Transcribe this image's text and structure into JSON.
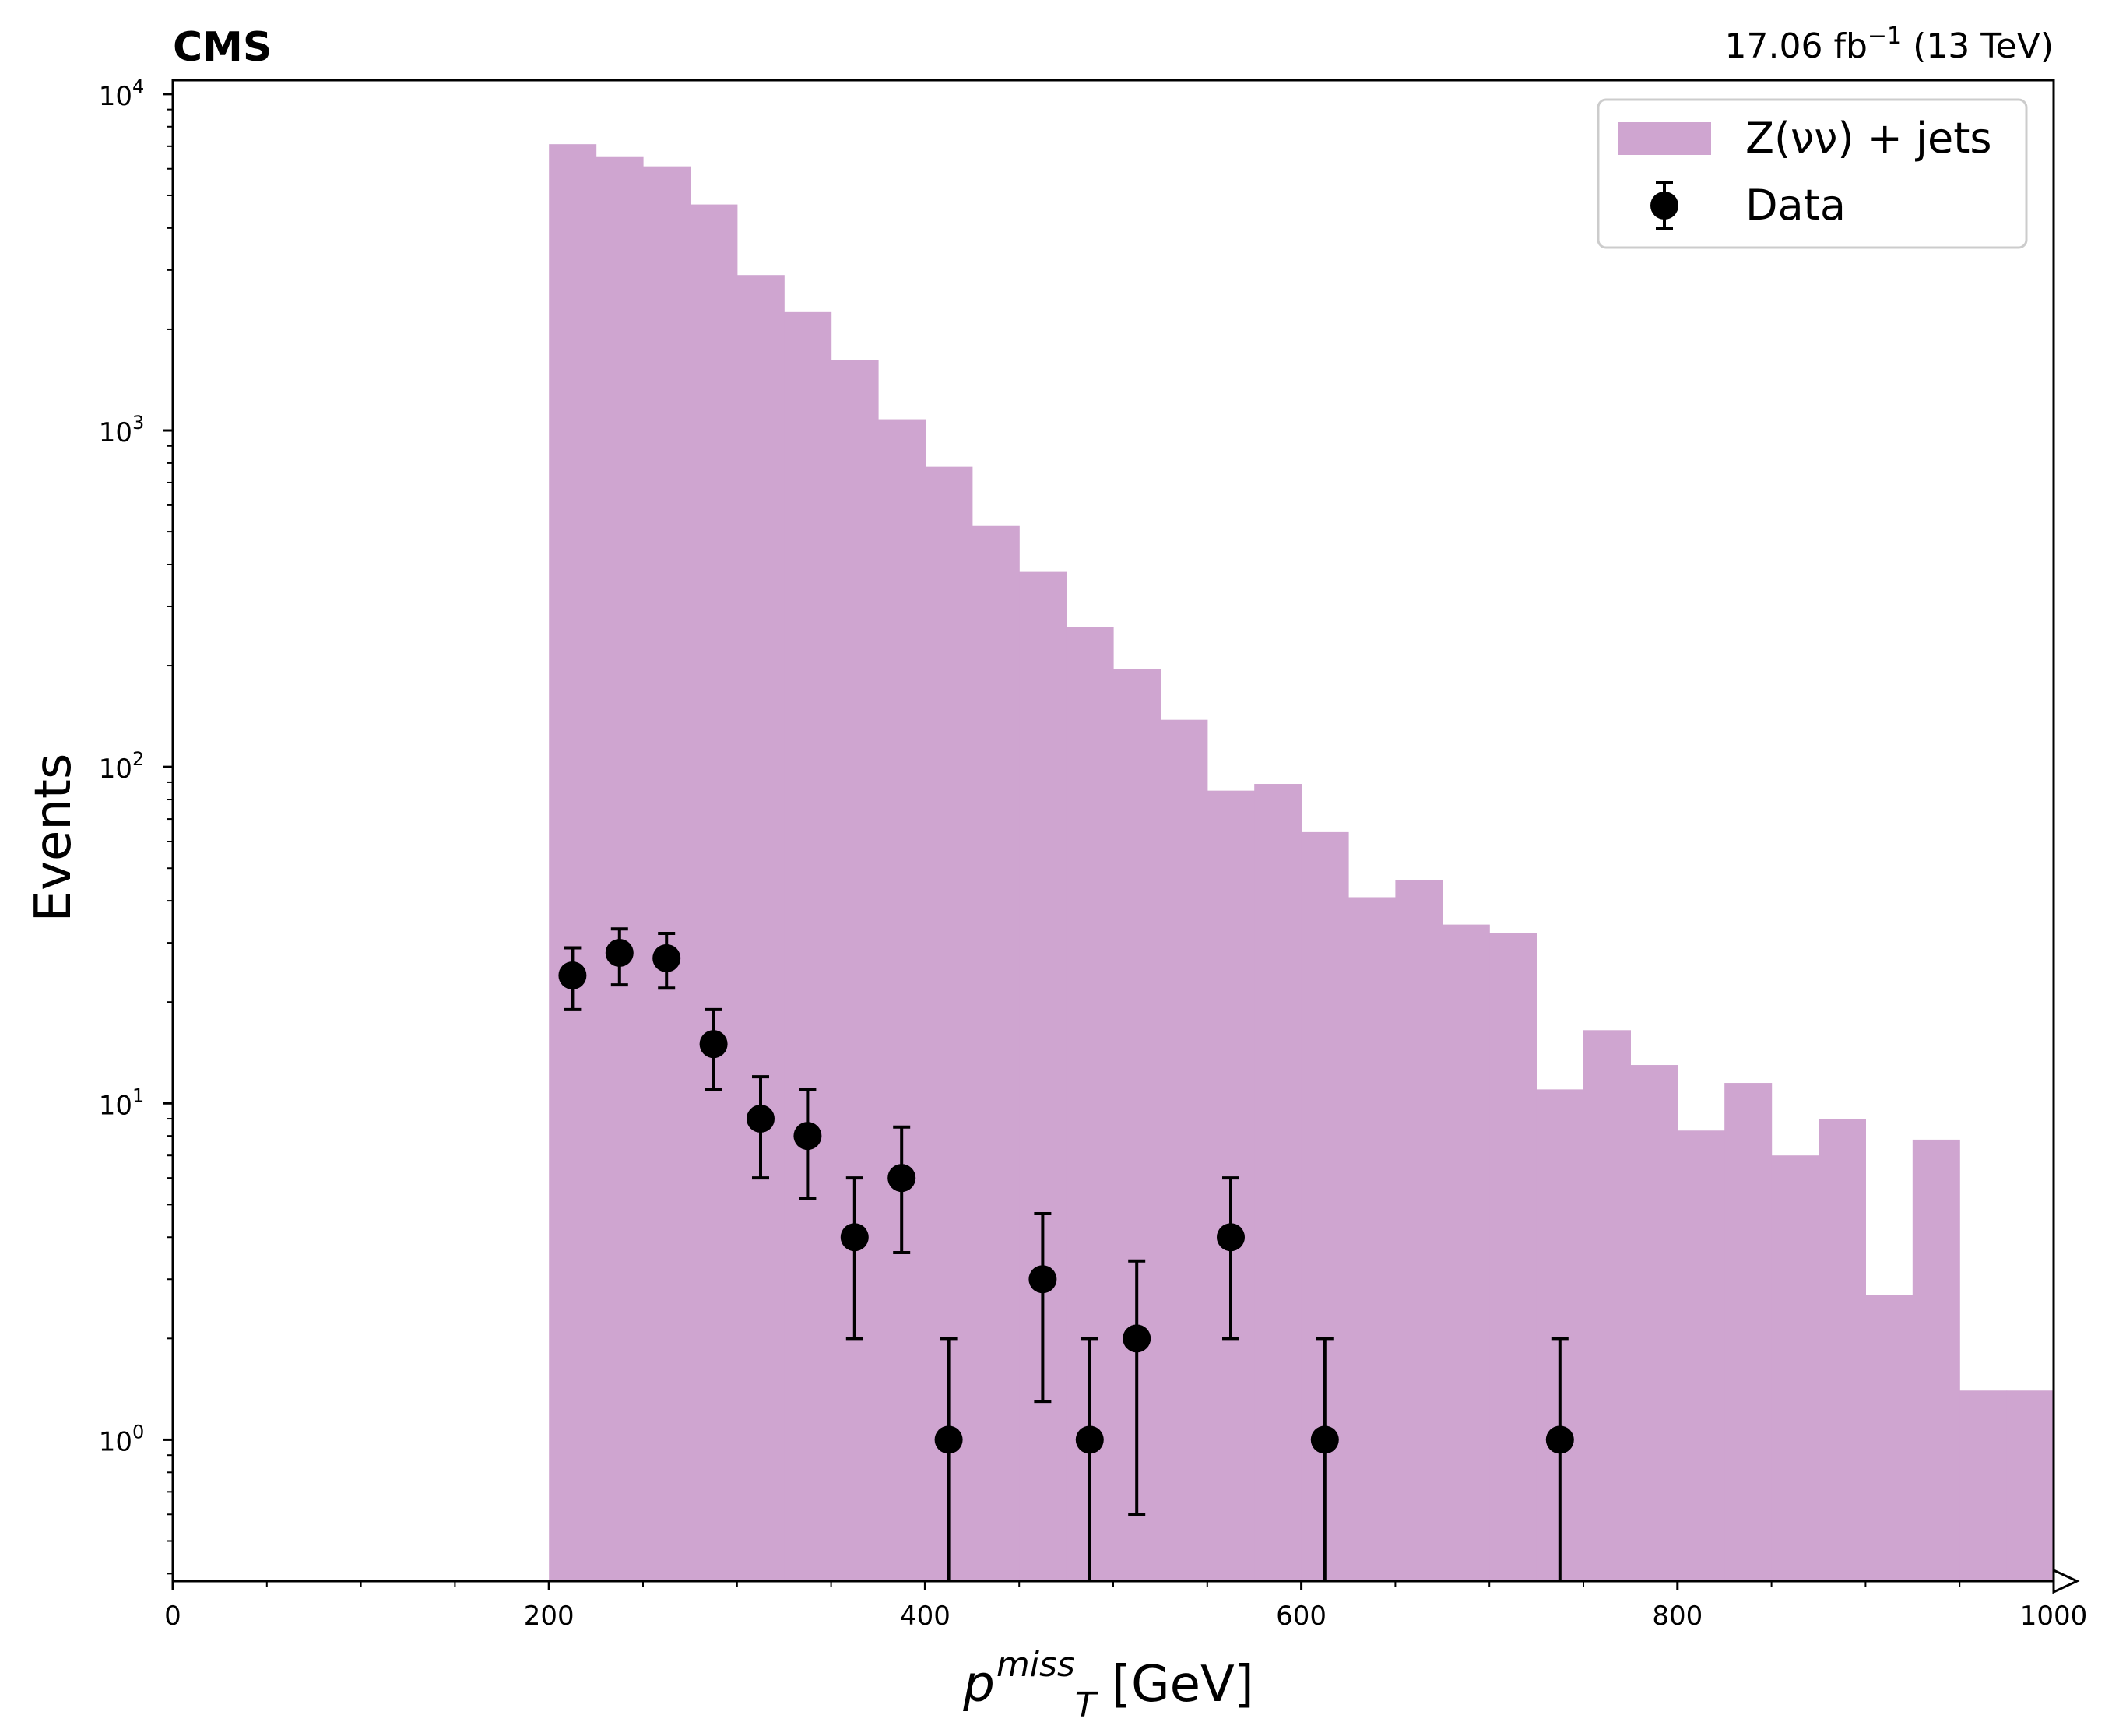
{
  "chart_data": {
    "type": "bar",
    "experiment_label": "CMS",
    "lumi_label": "17.06 fb",
    "lumi_exponent": "−1",
    "energy_label": " (13 TeV)",
    "xlabel_symbol": "p",
    "xlabel_sub": "T",
    "xlabel_sup": "miss",
    "xlabel_unit": " [GeV]",
    "ylabel": "Events",
    "xlim": [
      0,
      1000
    ],
    "ylim": [
      0.38,
      11000
    ],
    "yscale": "log",
    "x_ticks": [
      "0",
      "200",
      "400",
      "600",
      "800",
      "1000"
    ],
    "y_ticks": [
      {
        "value": 1,
        "base": "10",
        "exp": "0"
      },
      {
        "value": 10,
        "base": "10",
        "exp": "1"
      },
      {
        "value": 100,
        "base": "10",
        "exp": "2"
      },
      {
        "value": 1000,
        "base": "10",
        "exp": "3"
      },
      {
        "value": 10000,
        "base": "10",
        "exp": "4"
      }
    ],
    "legend_position": "top-right",
    "histogram": {
      "name": "Z(νν) + jets",
      "color": "#cfa5d0",
      "bin_edges": [
        200,
        225,
        250,
        275,
        300,
        325,
        350,
        375,
        400,
        425,
        450,
        475,
        500,
        525,
        550,
        575,
        600,
        625,
        650,
        675,
        700,
        725,
        750,
        775,
        800,
        825,
        850,
        875,
        900,
        925,
        950,
        975,
        1000
      ],
      "values": [
        7100,
        6500,
        6100,
        4700,
        2900,
        2250,
        1620,
        1080,
        780,
        520,
        380,
        260,
        195,
        138,
        85,
        89,
        64,
        41,
        46,
        34,
        32,
        11,
        16.5,
        13,
        8.3,
        11.5,
        7,
        9,
        2.7,
        7.8,
        1.4,
        1.4
      ]
    },
    "data": {
      "name": "Data",
      "color": "#000000",
      "points": [
        {
          "x": 212.5,
          "y": 24,
          "lo": 19,
          "hi": 29
        },
        {
          "x": 237.5,
          "y": 28,
          "lo": 22.5,
          "hi": 33
        },
        {
          "x": 262.5,
          "y": 27,
          "lo": 22,
          "hi": 32
        },
        {
          "x": 287.5,
          "y": 15,
          "lo": 11,
          "hi": 19
        },
        {
          "x": 312.5,
          "y": 9,
          "lo": 6,
          "hi": 12
        },
        {
          "x": 337.5,
          "y": 8,
          "lo": 5.2,
          "hi": 11
        },
        {
          "x": 362.5,
          "y": 4,
          "lo": 2,
          "hi": 6
        },
        {
          "x": 387.5,
          "y": 6,
          "lo": 3.6,
          "hi": 8.5
        },
        {
          "x": 412.5,
          "y": 1,
          "lo": 0,
          "hi": 2
        },
        {
          "x": 462.5,
          "y": 3,
          "lo": 1.3,
          "hi": 4.7
        },
        {
          "x": 487.5,
          "y": 1,
          "lo": 0,
          "hi": 2
        },
        {
          "x": 512.5,
          "y": 2,
          "lo": 0.6,
          "hi": 3.4
        },
        {
          "x": 562.5,
          "y": 4,
          "lo": 2,
          "hi": 6
        },
        {
          "x": 612.5,
          "y": 1,
          "lo": 0,
          "hi": 2
        },
        {
          "x": 737.5,
          "y": 1,
          "lo": 0,
          "hi": 2
        }
      ]
    }
  }
}
